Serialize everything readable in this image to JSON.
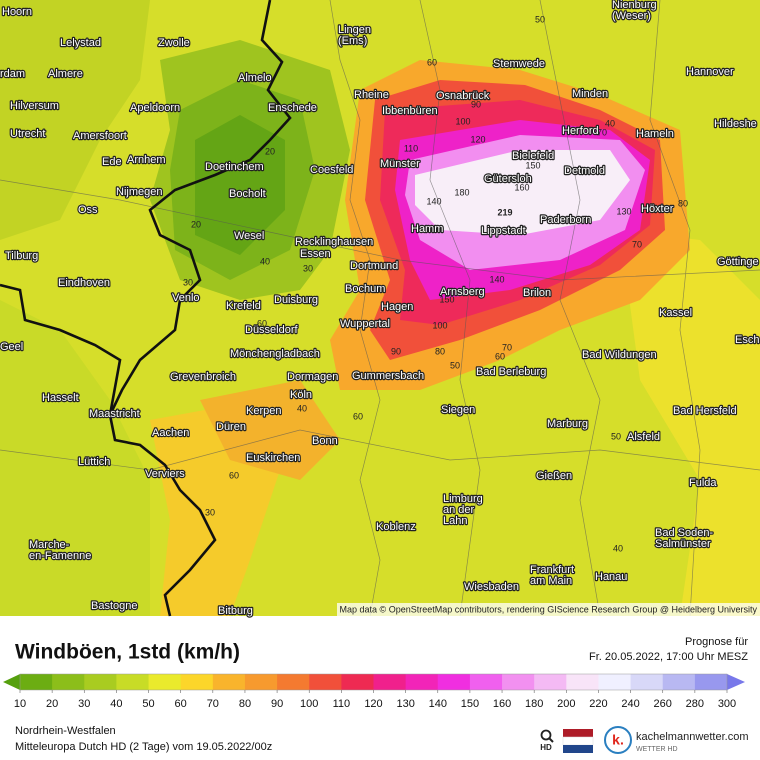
{
  "map": {
    "cities": [
      [
        "Hoorn"
      ],
      [
        "Nienburg",
        "(Weser)"
      ],
      [
        "Lelystad"
      ],
      [
        "Zwolle"
      ],
      [
        "Lingen",
        "(Ems)"
      ],
      [
        "rdam"
      ],
      [
        "Almere"
      ],
      [
        "Almelo"
      ],
      [
        "Stemwede"
      ],
      [
        "Hannover"
      ],
      [
        "Hilversum"
      ],
      [
        "Apeldoorn"
      ],
      [
        "Enschede"
      ],
      [
        "Rheine"
      ],
      [
        "Osnabrück"
      ],
      [
        "Minden"
      ],
      [
        "Utrecht"
      ],
      [
        "Amersfoort"
      ],
      [
        "Ibbenbüren"
      ],
      [
        "Herford"
      ],
      [
        "Hameln"
      ],
      [
        "Hildeshe"
      ],
      [
        "Ede"
      ],
      [
        "Arnhem"
      ],
      [
        "Doetinchem"
      ],
      [
        "Coesfeld"
      ],
      [
        "Münster"
      ],
      [
        "Bielefeld"
      ],
      [
        "Gütersloh"
      ],
      [
        "Detmold"
      ],
      [
        "Nijmegen"
      ],
      [
        "Bocholt"
      ],
      [
        "Oss"
      ],
      [
        "Wesel"
      ],
      [
        "Paderborn"
      ],
      [
        "Höxter"
      ],
      [
        "Recklinghausen"
      ],
      [
        "Hamm"
      ],
      [
        "Lippstadt"
      ],
      [
        "Tilburg"
      ],
      [
        "Essen"
      ],
      [
        "Dortmund"
      ],
      [
        "Göttinge"
      ],
      [
        "Eindhoven"
      ],
      [
        "Bochum"
      ],
      [
        "Arnsberg"
      ],
      [
        "Brilon"
      ],
      [
        "Venlo"
      ],
      [
        "Duisburg"
      ],
      [
        "Krefeld"
      ],
      [
        "Hagen"
      ],
      [
        "Kassel"
      ],
      [
        "Wuppertal"
      ],
      [
        "Düsseldorf"
      ],
      [
        "Geel"
      ],
      [
        "Esch"
      ],
      [
        "Mönchengladbach"
      ],
      [
        "Bad Wildungen"
      ],
      [
        "Grevenbroich"
      ],
      [
        "Dormagen"
      ],
      [
        "Gummersbach"
      ],
      [
        "Bad Berleburg"
      ],
      [
        "Hasselt"
      ],
      [
        "Köln"
      ],
      [
        "Kerpen"
      ],
      [
        "Siegen"
      ],
      [
        "Bad Hersfeld"
      ],
      [
        "Maastricht"
      ],
      [
        "Düren"
      ],
      [
        "Marburg"
      ],
      [
        "Aachen"
      ],
      [
        "Alsfeld"
      ],
      [
        "Bonn"
      ],
      [
        "Lüttich"
      ],
      [
        "Verviers"
      ],
      [
        "Euskirchen"
      ],
      [
        "Gießen"
      ],
      [
        "Fulda"
      ],
      [
        "Limburg",
        "an der",
        "Lahn"
      ],
      [
        "Koblenz"
      ],
      [
        "Marche-",
        "en-Famenne"
      ],
      [
        "Bad Soden-",
        "Salmünster"
      ],
      [
        "Frankfurt",
        "am Main"
      ],
      [
        "Hanau"
      ],
      [
        "Wiesbaden"
      ],
      [
        "Bastogne"
      ],
      [
        "Bitburg"
      ]
    ],
    "contour_labels": [
      50,
      60,
      90,
      100,
      110,
      120,
      70,
      40,
      150,
      160,
      180,
      140,
      219,
      130,
      80,
      70,
      20,
      20,
      40,
      30,
      60,
      100,
      90,
      80,
      70,
      60,
      50,
      60,
      40,
      50,
      60,
      30,
      40,
      30,
      140,
      150
    ],
    "attribution": "Map data © OpenStreetMap contributors, rendering GIScience Research Group @ Heidelberg University"
  },
  "header": {
    "title": "Windböen, 1std (km/h)",
    "forecast_label": "Prognose für",
    "forecast_time": "Fr. 20.05.2022, 17:00 Uhr MESZ"
  },
  "legend": {
    "ticks": [
      10,
      20,
      30,
      40,
      50,
      60,
      70,
      80,
      90,
      100,
      110,
      120,
      130,
      140,
      150,
      160,
      180,
      200,
      220,
      240,
      260,
      280,
      300
    ],
    "colors": [
      "#55a00e",
      "#6cad12",
      "#8cbe1a",
      "#a9cc20",
      "#c8dc26",
      "#eaea2c",
      "#fcd62a",
      "#f9b42c",
      "#f79a2e",
      "#f47a30",
      "#f1503a",
      "#ee2a52",
      "#f0208c",
      "#f224b8",
      "#f02ee0",
      "#f060ee",
      "#f290f0",
      "#f4baf4",
      "#f8e4f8",
      "#f0f0ff",
      "#d8d8f8",
      "#b8b8f2",
      "#9898ee",
      "#7878ea"
    ]
  },
  "footer": {
    "region": "Nordrhein-Westfalen",
    "model": "Mitteleuropa Dutch HD (2 Tage) vom 19.05.2022/00z",
    "search_icon_label": "HD",
    "brand": "kachelmannwetter.com",
    "brand_sub": "WETTER HD",
    "logo_letter": "k."
  }
}
